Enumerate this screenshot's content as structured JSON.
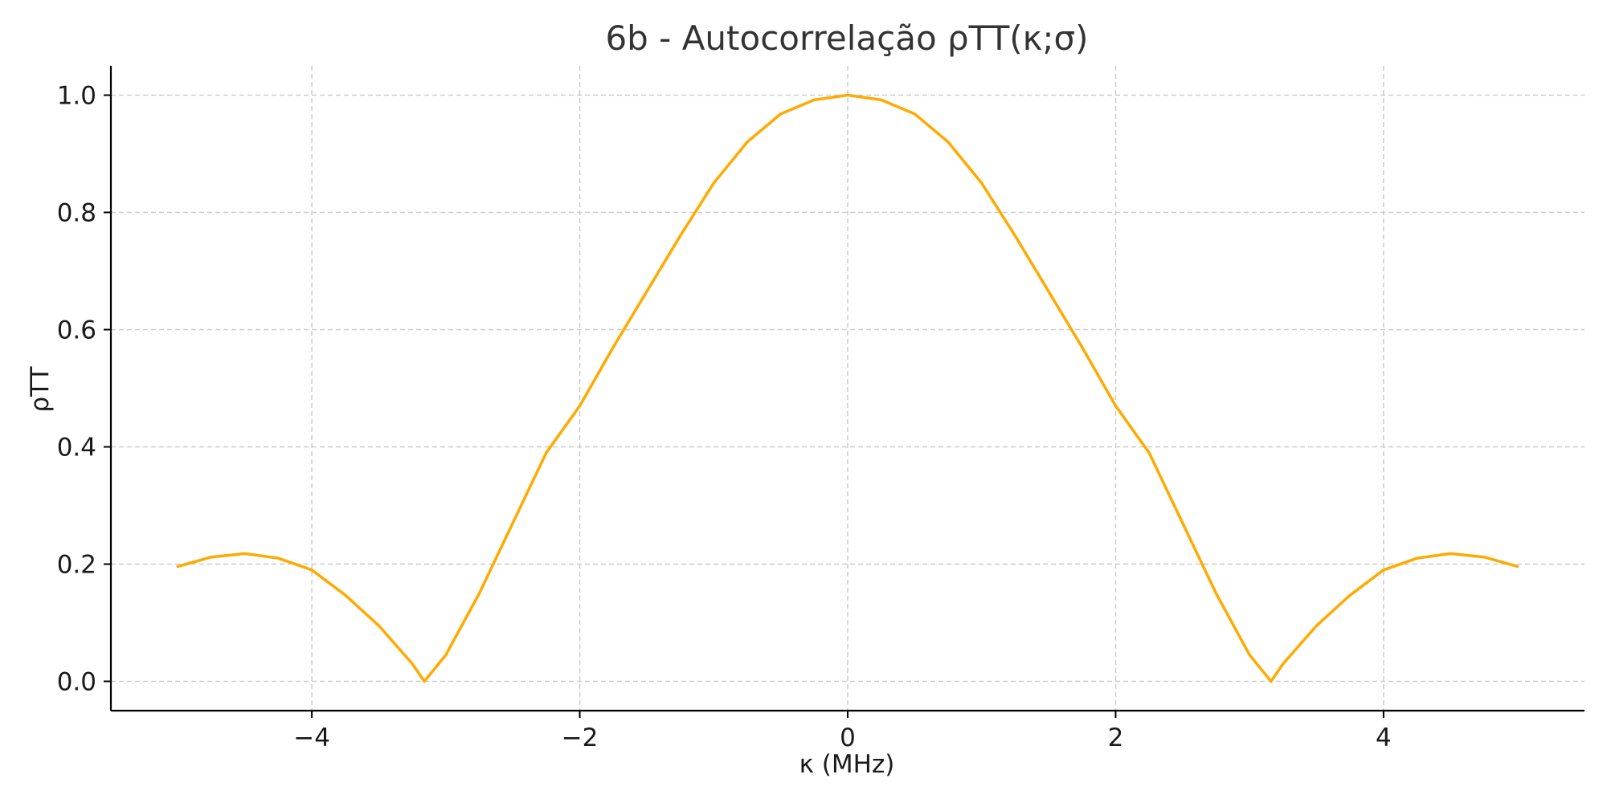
{
  "chart_data": {
    "type": "line",
    "title": "6b - Autocorrelação ρTT(κ;σ)",
    "xlabel": "κ (MHz)",
    "ylabel": "ρTT",
    "xlim": [
      -5.5,
      5.5
    ],
    "ylim": [
      -0.05,
      1.05
    ],
    "x_ticks": [
      -4,
      -2,
      0,
      2,
      4
    ],
    "x_tick_labels": [
      "−4",
      "−2",
      "0",
      "2",
      "4"
    ],
    "y_ticks": [
      0.0,
      0.2,
      0.4,
      0.6,
      0.8,
      1.0
    ],
    "y_tick_labels": [
      "0.0",
      "0.2",
      "0.4",
      "0.6",
      "0.8",
      "1.0"
    ],
    "grid": true,
    "series": [
      {
        "color": "#FFAA00",
        "x": [
          -5.0,
          -4.75,
          -4.5,
          -4.25,
          -4.0,
          -3.75,
          -3.5,
          -3.25,
          -3.16,
          -3.0,
          -2.75,
          -2.5,
          -2.25,
          -2.0,
          -1.75,
          -1.5,
          -1.25,
          -1.0,
          -0.75,
          -0.5,
          -0.25,
          0.0,
          0.25,
          0.5,
          0.75,
          1.0,
          1.25,
          1.5,
          1.75,
          2.0,
          2.25,
          2.5,
          2.75,
          3.0,
          3.16,
          3.25,
          3.5,
          3.75,
          4.0,
          4.25,
          4.5,
          4.75,
          5.0
        ],
        "y": [
          0.196,
          0.212,
          0.218,
          0.21,
          0.19,
          0.147,
          0.095,
          0.03,
          0.0,
          0.045,
          0.15,
          0.27,
          0.39,
          0.47,
          0.57,
          0.665,
          0.76,
          0.85,
          0.92,
          0.968,
          0.992,
          1.0,
          0.992,
          0.968,
          0.92,
          0.85,
          0.76,
          0.665,
          0.57,
          0.47,
          0.39,
          0.27,
          0.15,
          0.045,
          0.0,
          0.03,
          0.095,
          0.147,
          0.19,
          0.21,
          0.218,
          0.212,
          0.196
        ]
      }
    ]
  }
}
